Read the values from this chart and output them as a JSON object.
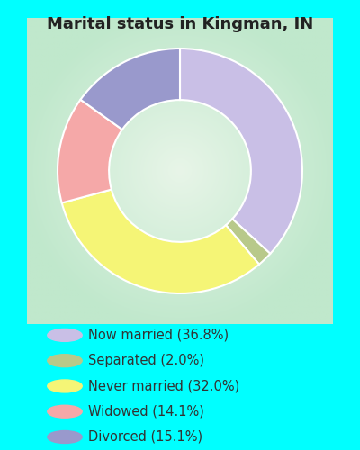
{
  "title": "Marital status in Kingman, IN",
  "background_color": "#00FFFF",
  "slices": [
    {
      "label": "Now married (36.8%)",
      "value": 36.8,
      "color": "#c9bfe6"
    },
    {
      "label": "Separated (2.0%)",
      "value": 2.0,
      "color": "#b8c98a"
    },
    {
      "label": "Never married (32.0%)",
      "value": 32.0,
      "color": "#f5f576"
    },
    {
      "label": "Widowed (14.1%)",
      "value": 14.1,
      "color": "#f5a8a8"
    },
    {
      "label": "Divorced (15.1%)",
      "value": 15.1,
      "color": "#9999cc"
    }
  ],
  "legend_marker_colors": [
    "#c9bfe6",
    "#b8c98a",
    "#f5f576",
    "#f5a8a8",
    "#9999cc"
  ],
  "title_fontsize": 13,
  "title_color": "#222222",
  "legend_fontsize": 10.5,
  "legend_text_color": "#333333",
  "start_angle": 90
}
